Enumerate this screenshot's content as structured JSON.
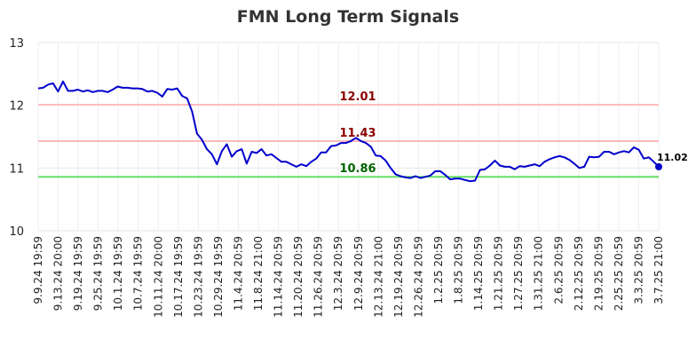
{
  "chart_data": {
    "type": "line",
    "title": "FMN Long Term Signals",
    "xlabel": "",
    "ylabel": "",
    "ylim": [
      10,
      13
    ],
    "yticks": [
      "10",
      "11",
      "12",
      "13"
    ],
    "grid": true,
    "xtick_labels": [
      "9.9.24 19:59",
      "9.13.24 20:00",
      "9.19.24 19:59",
      "9.25.24 19:59",
      "10.1.24 19:59",
      "10.7.24 19:59",
      "10.11.24 20:00",
      "10.17.24 19:59",
      "10.23.24 19:59",
      "10.29.24 19:59",
      "11.4.24 20:59",
      "11.8.24 21:00",
      "11.14.24 20:59",
      "11.20.24 20:59",
      "11.26.24 20:59",
      "12.3.24 20:59",
      "12.9.24 20:59",
      "12.13.24 21:00",
      "12.19.24 20:59",
      "12.26.24 20:59",
      "1.2.25 20:59",
      "1.8.25 20:59",
      "1.14.25 20:59",
      "1.21.25 20:59",
      "1.27.25 20:59",
      "1.31.25 21:00",
      "2.6.25 20:59",
      "2.12.25 20:59",
      "2.19.25 20:59",
      "2.25.25 20:59",
      "3.3.25 20:59",
      "3.7.25 21:00"
    ],
    "series": [
      {
        "color": "#0000cc",
        "values": [
          12.27,
          12.28,
          12.33,
          12.35,
          12.22,
          12.38,
          12.23,
          12.23,
          12.25,
          12.22,
          12.24,
          12.21,
          12.23,
          12.23,
          12.21,
          12.25,
          12.3,
          12.28,
          12.28,
          12.27,
          12.27,
          12.26,
          12.22,
          12.23,
          12.2,
          12.14,
          12.26,
          12.25,
          12.27,
          12.15,
          12.11,
          11.9,
          11.55,
          11.45,
          11.3,
          11.22,
          11.06,
          11.27,
          11.38,
          11.18,
          11.27,
          11.3,
          11.07,
          11.26,
          11.24,
          11.3,
          11.2,
          11.22,
          11.16,
          11.1,
          11.1,
          11.06,
          11.02,
          11.06,
          11.03,
          11.1,
          11.15,
          11.25,
          11.25,
          11.35,
          11.36,
          11.4,
          11.4,
          11.43,
          11.48,
          11.43,
          11.4,
          11.34,
          11.2,
          11.19,
          11.12,
          11.0,
          10.9,
          10.87,
          10.85,
          10.84,
          10.87,
          10.84,
          10.86,
          10.88,
          10.95,
          10.95,
          10.89,
          10.82,
          10.83,
          10.83,
          10.81,
          10.79,
          10.8,
          10.97,
          10.98,
          11.04,
          11.12,
          11.04,
          11.02,
          11.02,
          10.98,
          11.03,
          11.02,
          11.04,
          11.06,
          11.03,
          11.1,
          11.14,
          11.17,
          11.19,
          11.17,
          11.13,
          11.07,
          11.0,
          11.02,
          11.18,
          11.17,
          11.18,
          11.26,
          11.26,
          11.22,
          11.25,
          11.27,
          11.25,
          11.33,
          11.29,
          11.15,
          11.17,
          11.1,
          11.02
        ]
      }
    ],
    "levels": [
      {
        "value": 12.01,
        "label": "12.01",
        "line_color": "#ffbbbb",
        "text_color": "#8b0000"
      },
      {
        "value": 11.43,
        "label": "11.43",
        "line_color": "#ffbbbb",
        "text_color": "#8b0000"
      },
      {
        "value": 10.86,
        "label": "10.86",
        "line_color": "#66dd66",
        "text_color": "#006400"
      }
    ],
    "last_value_label": "11.02"
  }
}
